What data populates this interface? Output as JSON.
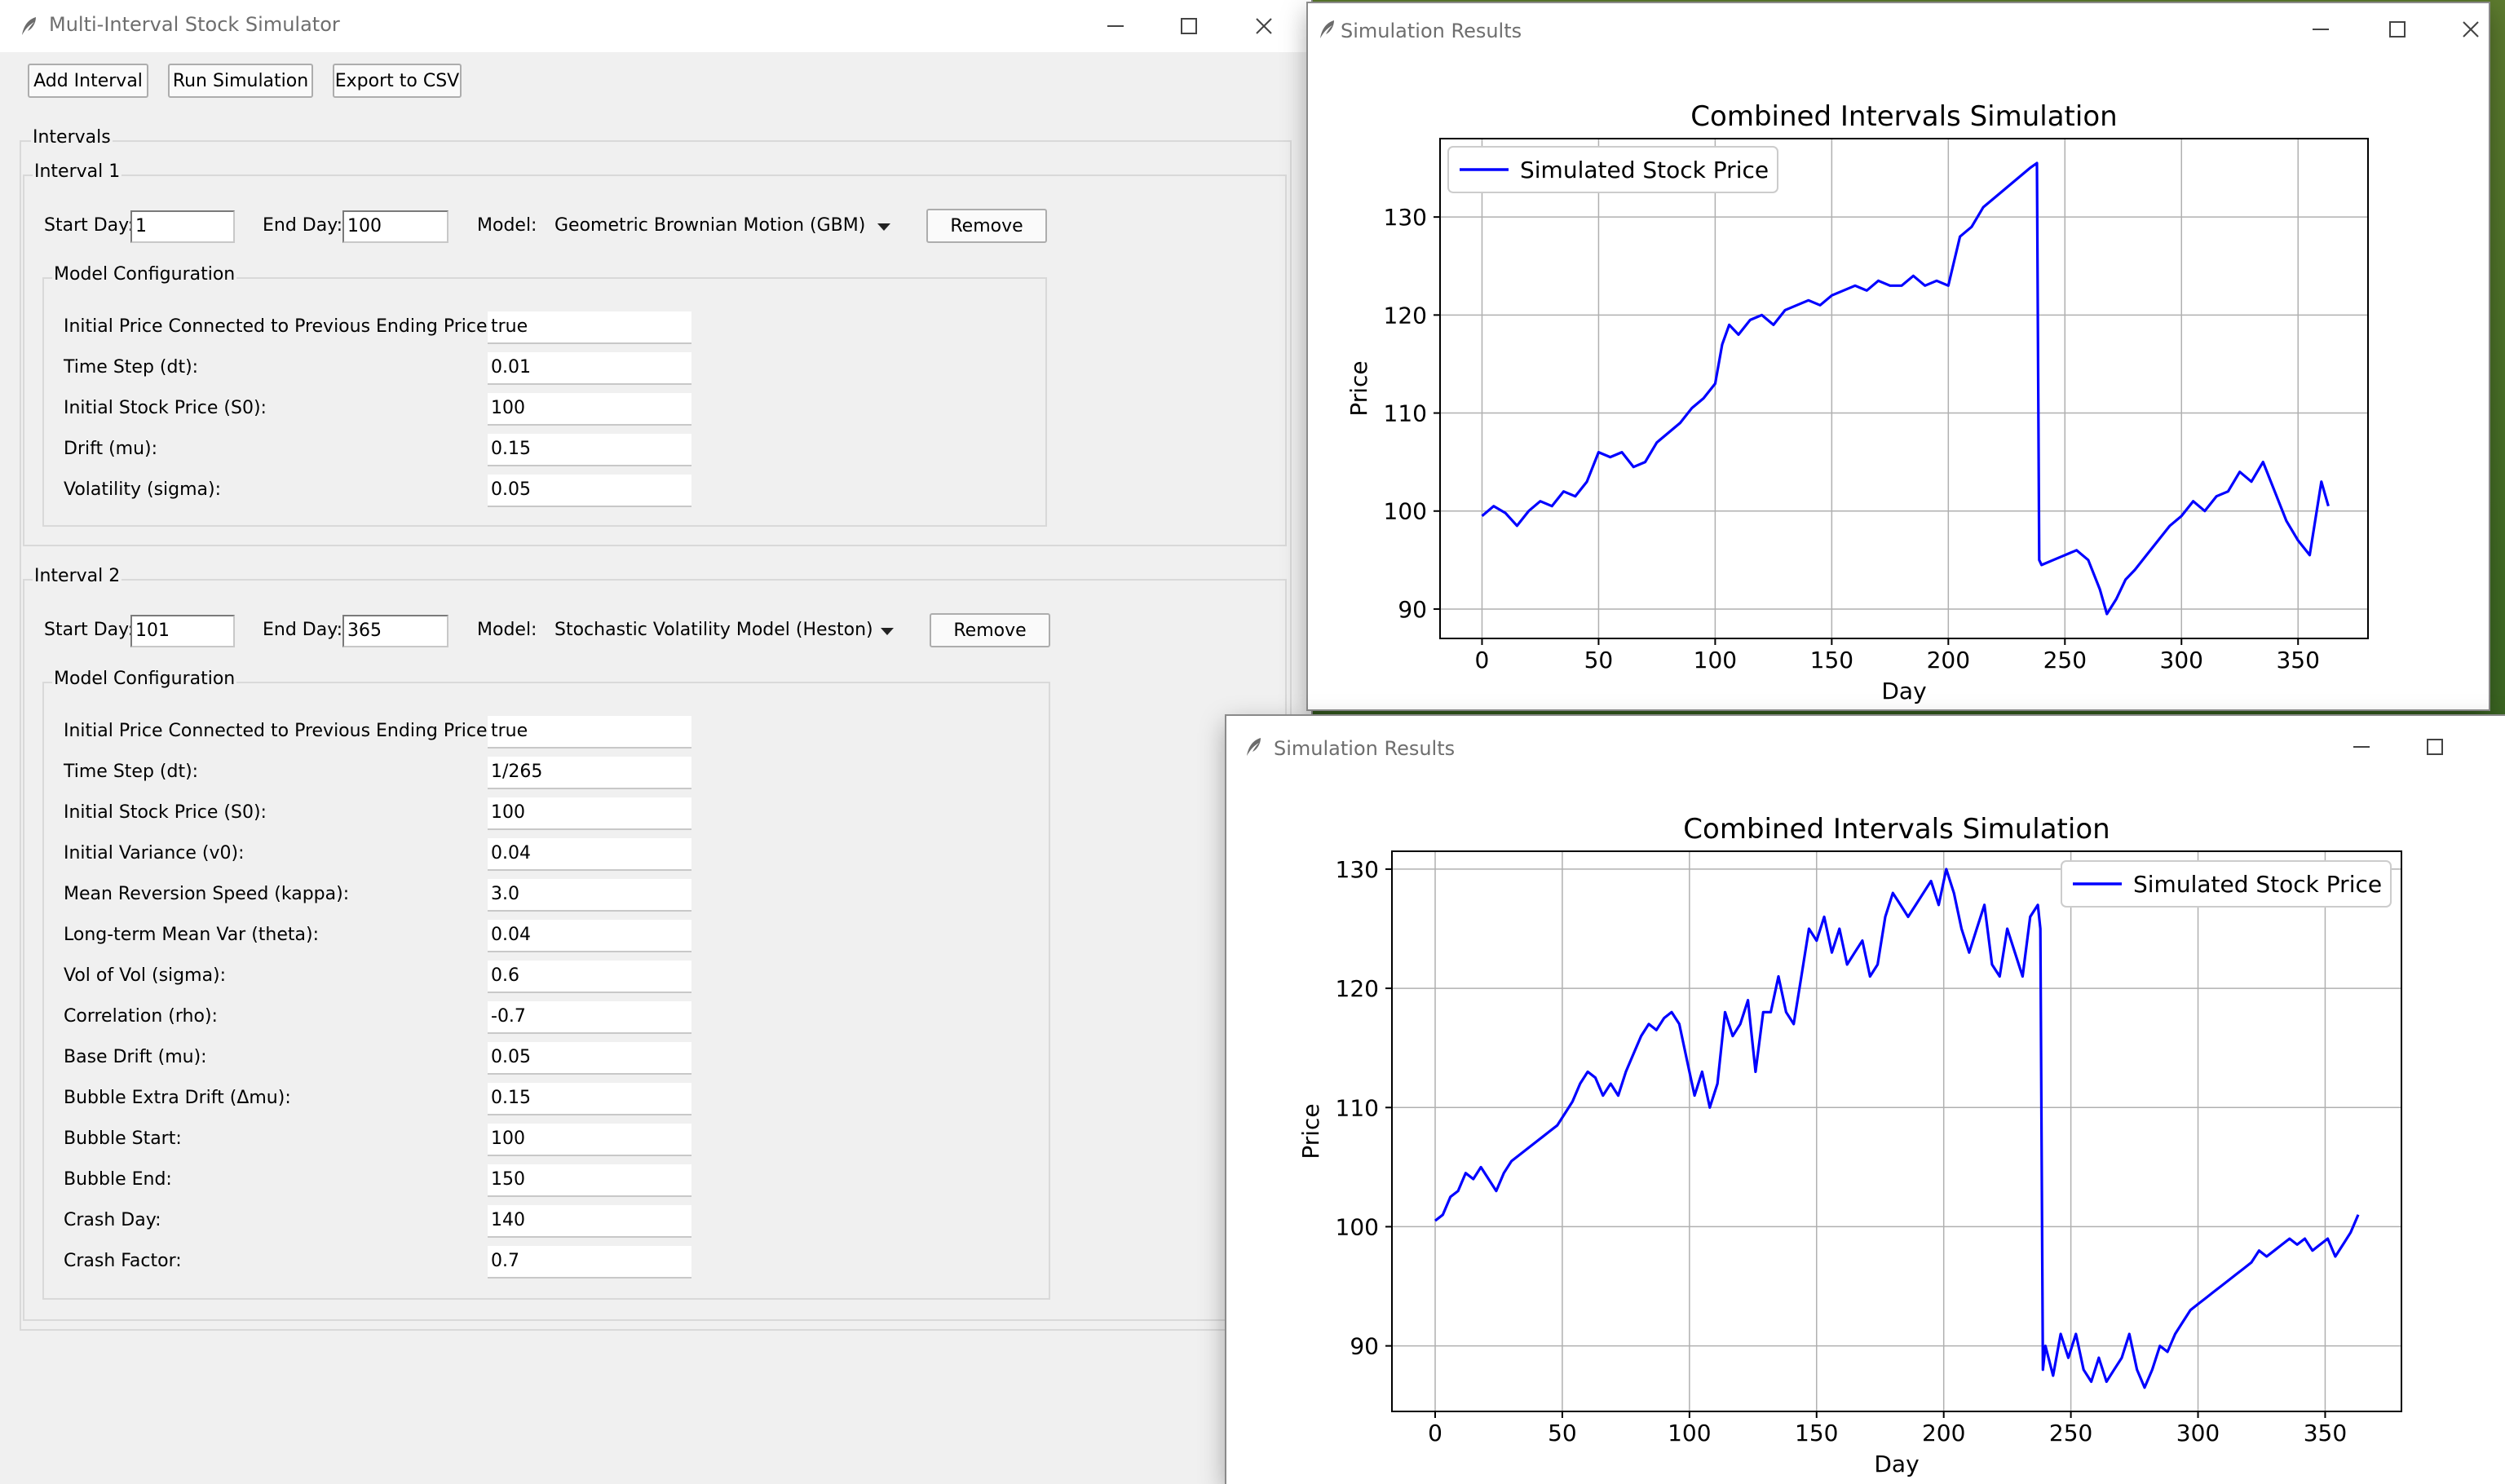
{
  "colors": {
    "line": "#0000ff",
    "grid": "#b0b0b0",
    "accent": "#000000"
  },
  "main_window": {
    "title": "Multi-Interval Stock Simulator",
    "toolbar": {
      "add_interval": "Add Interval",
      "run_simulation": "Run Simulation",
      "export_csv": "Export to CSV"
    },
    "intervals_label": "Intervals",
    "interval1": {
      "title": "Interval 1",
      "start_label": "Start Day:",
      "start_value": "1",
      "end_label": "End Day:",
      "end_value": "100",
      "model_label": "Model:",
      "model_value": "Geometric Brownian Motion (GBM)",
      "remove": "Remove",
      "config_title": "Model Configuration",
      "fields": [
        {
          "label": "Initial Price Connected to Previous Ending Price:",
          "value": "true"
        },
        {
          "label": "Time Step (dt):",
          "value": "0.01"
        },
        {
          "label": "Initial Stock Price (S0):",
          "value": "100"
        },
        {
          "label": "Drift (mu):",
          "value": "0.15"
        },
        {
          "label": "Volatility (sigma):",
          "value": "0.05"
        }
      ]
    },
    "interval2": {
      "title": "Interval 2",
      "start_label": "Start Day:",
      "start_value": "101",
      "end_label": "End Day:",
      "end_value": "365",
      "model_label": "Model:",
      "model_value": "Stochastic Volatility Model (Heston)",
      "remove": "Remove",
      "config_title": "Model Configuration",
      "fields": [
        {
          "label": "Initial Price Connected to Previous Ending Price:",
          "value": "true"
        },
        {
          "label": "Time Step (dt):",
          "value": "1/265"
        },
        {
          "label": "Initial Stock Price (S0):",
          "value": "100"
        },
        {
          "label": "Initial Variance (v0):",
          "value": "0.04"
        },
        {
          "label": "Mean Reversion Speed (kappa):",
          "value": "3.0"
        },
        {
          "label": "Long-term Mean Var (theta):",
          "value": "0.04"
        },
        {
          "label": "Vol of Vol (sigma):",
          "value": "0.6"
        },
        {
          "label": "Correlation (rho):",
          "value": "-0.7"
        },
        {
          "label": "Base Drift (mu):",
          "value": "0.05"
        },
        {
          "label": "Bubble Extra Drift (Δmu):",
          "value": "0.15"
        },
        {
          "label": "Bubble Start:",
          "value": "100"
        },
        {
          "label": "Bubble End:",
          "value": "150"
        },
        {
          "label": "Crash Day:",
          "value": "140"
        },
        {
          "label": "Crash Factor:",
          "value": "0.7"
        }
      ]
    }
  },
  "results_window_1": {
    "title": "Simulation Results"
  },
  "results_window_2": {
    "title": "Simulation Results"
  },
  "chart_data": [
    {
      "type": "line",
      "title": "Combined Intervals Simulation",
      "xlabel": "Day",
      "ylabel": "Price",
      "xlim": [
        -18,
        380
      ],
      "ylim": [
        87,
        138
      ],
      "xticks": [
        0,
        50,
        100,
        150,
        200,
        250,
        300,
        350
      ],
      "yticks": [
        90,
        100,
        110,
        120,
        130
      ],
      "grid": true,
      "legend_position": "upper left",
      "series": [
        {
          "name": "Simulated Stock Price",
          "x": [
            0,
            5,
            10,
            15,
            20,
            25,
            30,
            35,
            40,
            45,
            50,
            55,
            60,
            65,
            70,
            75,
            80,
            85,
            90,
            95,
            100,
            103,
            106,
            110,
            115,
            120,
            125,
            130,
            135,
            140,
            145,
            150,
            155,
            160,
            165,
            170,
            175,
            180,
            185,
            190,
            195,
            200,
            205,
            210,
            215,
            220,
            225,
            230,
            235,
            238,
            239,
            240,
            245,
            250,
            255,
            260,
            265,
            268,
            272,
            276,
            280,
            285,
            290,
            295,
            300,
            305,
            310,
            315,
            320,
            325,
            330,
            335,
            340,
            345,
            350,
            355,
            358,
            360,
            363
          ],
          "values": [
            99.5,
            100.5,
            99.8,
            98.5,
            100,
            101,
            100.5,
            102,
            101.5,
            103,
            106,
            105.5,
            106,
            104.5,
            105,
            107,
            108,
            109,
            110.5,
            111.5,
            113,
            117,
            119,
            118,
            119.5,
            120,
            119,
            120.5,
            121,
            121.5,
            121,
            122,
            122.5,
            123,
            122.5,
            123.5,
            123,
            123,
            124,
            123,
            123.5,
            123,
            128,
            129,
            131,
            132,
            133,
            134,
            135,
            135.5,
            95,
            94.5,
            95,
            95.5,
            96,
            95,
            92,
            89.5,
            91,
            93,
            94,
            95.5,
            97,
            98.5,
            99.5,
            101,
            100,
            101.5,
            102,
            104,
            103,
            105,
            102,
            99,
            97,
            95.5,
            100,
            103,
            100.5
          ]
        }
      ]
    },
    {
      "type": "line",
      "title": "Combined Intervals Simulation",
      "xlabel": "Day",
      "ylabel": "Price",
      "xlim": [
        -17,
        380
      ],
      "ylim": [
        84.5,
        131.5
      ],
      "xticks": [
        0,
        50,
        100,
        150,
        200,
        250,
        300,
        350
      ],
      "yticks": [
        90,
        100,
        110,
        120,
        130
      ],
      "grid": true,
      "legend_position": "upper right",
      "series": [
        {
          "name": "Simulated Stock Price",
          "x": [
            0,
            3,
            6,
            9,
            12,
            15,
            18,
            21,
            24,
            27,
            30,
            33,
            36,
            39,
            42,
            45,
            48,
            51,
            54,
            57,
            60,
            63,
            66,
            69,
            72,
            75,
            78,
            81,
            84,
            87,
            90,
            93,
            96,
            99,
            102,
            105,
            108,
            111,
            114,
            117,
            120,
            123,
            126,
            129,
            132,
            135,
            138,
            141,
            144,
            147,
            150,
            153,
            156,
            159,
            162,
            165,
            168,
            171,
            174,
            177,
            180,
            183,
            186,
            189,
            192,
            195,
            198,
            201,
            204,
            207,
            210,
            213,
            216,
            219,
            222,
            225,
            228,
            231,
            234,
            237,
            238,
            239,
            240,
            243,
            246,
            249,
            252,
            255,
            258,
            261,
            264,
            267,
            270,
            273,
            276,
            279,
            282,
            285,
            288,
            291,
            294,
            297,
            300,
            303,
            306,
            309,
            312,
            315,
            318,
            321,
            324,
            327,
            330,
            333,
            336,
            339,
            342,
            345,
            348,
            351,
            354,
            357,
            360,
            363
          ],
          "values": [
            100.5,
            101,
            102.5,
            103,
            104.5,
            104,
            105,
            104,
            103,
            104.5,
            105.5,
            106,
            106.5,
            107,
            107.5,
            108,
            108.5,
            109.5,
            110.5,
            112,
            113,
            112.5,
            111,
            112,
            111,
            113,
            114.5,
            116,
            117,
            116.5,
            117.5,
            118,
            117,
            114,
            111,
            113,
            110,
            112,
            118,
            116,
            117,
            119,
            113,
            118,
            118,
            121,
            118,
            117,
            121,
            125,
            124,
            126,
            123,
            125,
            122,
            123,
            124,
            121,
            122,
            126,
            128,
            127,
            126,
            127,
            128,
            129,
            127,
            130,
            128,
            125,
            123,
            125,
            127,
            122,
            121,
            125,
            123,
            121,
            126,
            127,
            125,
            88,
            90,
            87.5,
            91,
            89,
            91,
            88,
            87,
            89,
            87,
            88,
            89,
            91,
            88,
            86.5,
            88,
            90,
            89.5,
            91,
            92,
            93,
            93.5,
            94,
            94.5,
            95,
            95.5,
            96,
            96.5,
            97,
            98,
            97.5,
            98,
            98.5,
            99,
            98.5,
            99,
            98,
            98.5,
            99,
            97.5,
            98.5,
            99.5,
            101
          ]
        }
      ]
    }
  ]
}
